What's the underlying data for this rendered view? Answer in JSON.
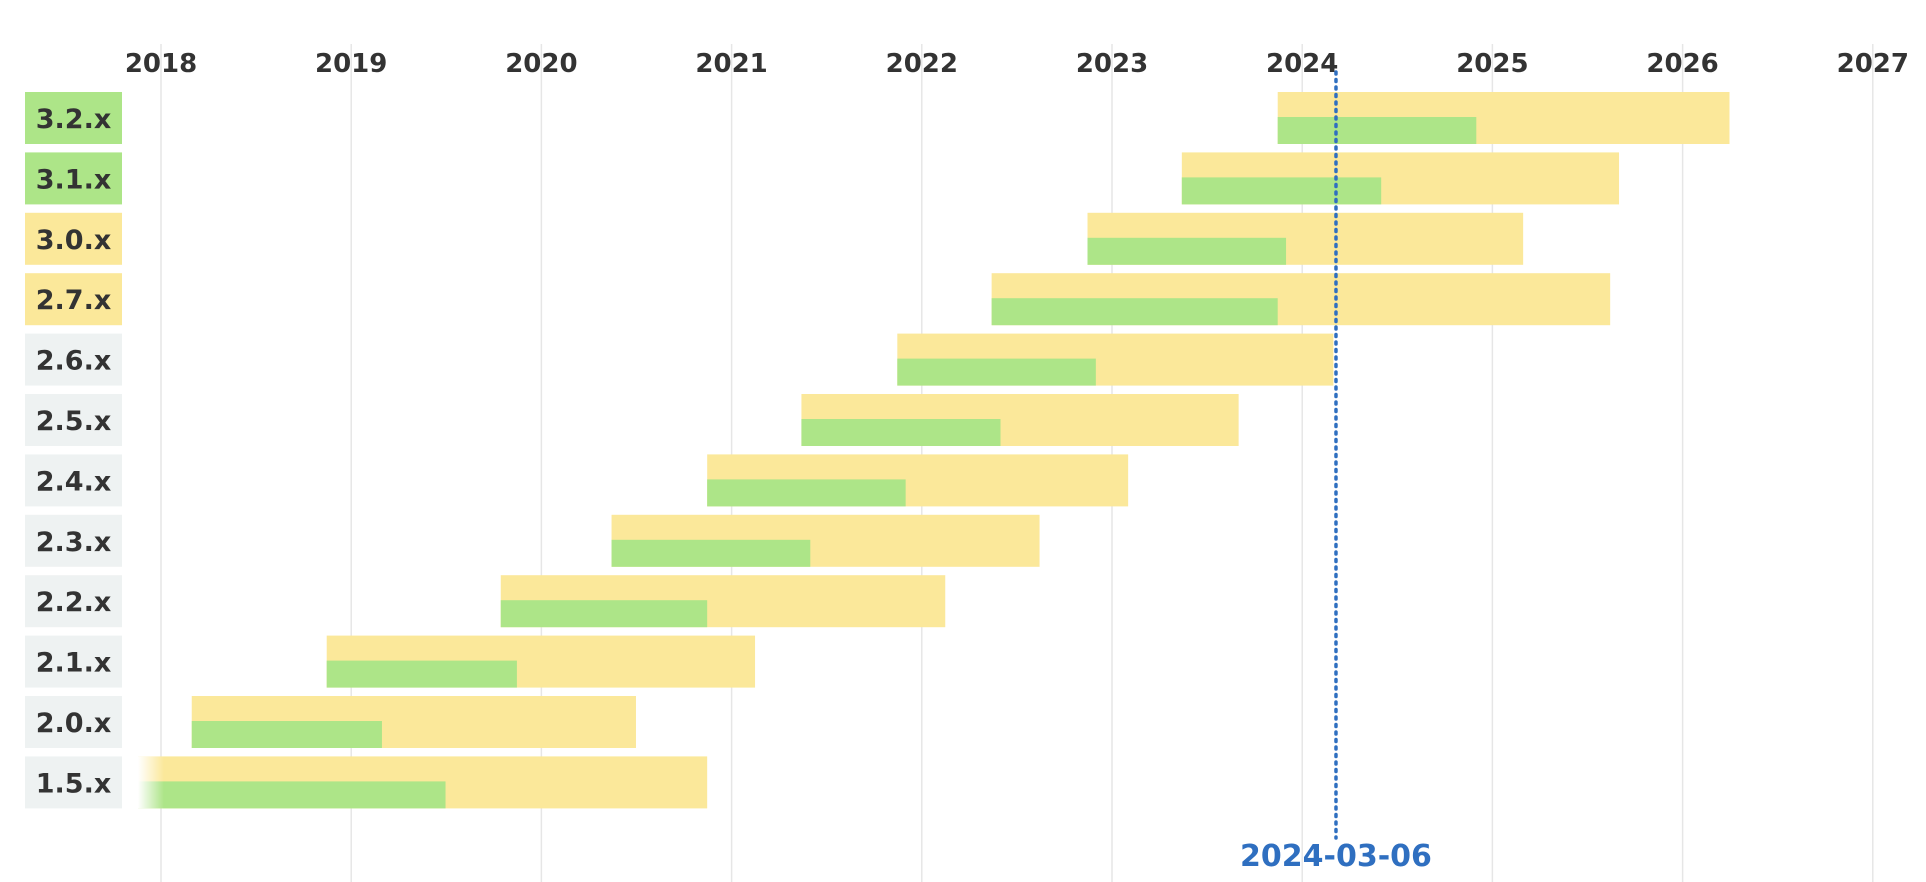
{
  "chart_data": {
    "type": "timeline",
    "x_ticks": [
      "2018",
      "2019",
      "2020",
      "2021",
      "2022",
      "2023",
      "2024",
      "2025",
      "2026",
      "2027"
    ],
    "xlim": [
      "2017-11-15",
      "2027-01-01"
    ],
    "today": "2024-03-06",
    "colors": {
      "security_support": "#fbe89a",
      "active_support": "#ade588",
      "supported_label": "#ade588",
      "security_label": "#fbe89a",
      "eol_label": "#eef2f2",
      "grid": "#e6e6e6",
      "today_line": "#2f6fc0"
    },
    "versions": [
      {
        "label": "3.2.x",
        "status": "supported",
        "release": "2023-11-15",
        "active_end": "2024-12-01",
        "security_end": "2026-04-01"
      },
      {
        "label": "3.1.x",
        "status": "supported",
        "release": "2023-05-15",
        "active_end": "2024-06-01",
        "security_end": "2025-09-01"
      },
      {
        "label": "3.0.x",
        "status": "security",
        "release": "2022-11-15",
        "active_end": "2023-12-01",
        "security_end": "2025-03-01"
      },
      {
        "label": "2.7.x",
        "status": "security",
        "release": "2022-05-15",
        "active_end": "2023-11-15",
        "security_end": "2025-08-15"
      },
      {
        "label": "2.6.x",
        "status": "eol",
        "release": "2021-11-15",
        "active_end": "2022-12-01",
        "security_end": "2024-03-01"
      },
      {
        "label": "2.5.x",
        "status": "eol",
        "release": "2021-05-15",
        "active_end": "2022-06-01",
        "security_end": "2023-09-01"
      },
      {
        "label": "2.4.x",
        "status": "eol",
        "release": "2020-11-15",
        "active_end": "2021-12-01",
        "security_end": "2023-02-01"
      },
      {
        "label": "2.3.x",
        "status": "eol",
        "release": "2020-05-15",
        "active_end": "2021-06-01",
        "security_end": "2022-08-15"
      },
      {
        "label": "2.2.x",
        "status": "eol",
        "release": "2019-10-15",
        "active_end": "2020-11-15",
        "security_end": "2022-02-15"
      },
      {
        "label": "2.1.x",
        "status": "eol",
        "release": "2018-11-15",
        "active_end": "2019-11-15",
        "security_end": "2021-02-15"
      },
      {
        "label": "2.0.x",
        "status": "eol",
        "release": "2018-03-01",
        "active_end": "2019-03-01",
        "security_end": "2020-07-01"
      },
      {
        "label": "1.5.x",
        "status": "eol",
        "release": "2017-11-15",
        "active_end": "2019-07-01",
        "security_end": "2020-11-15"
      }
    ]
  }
}
